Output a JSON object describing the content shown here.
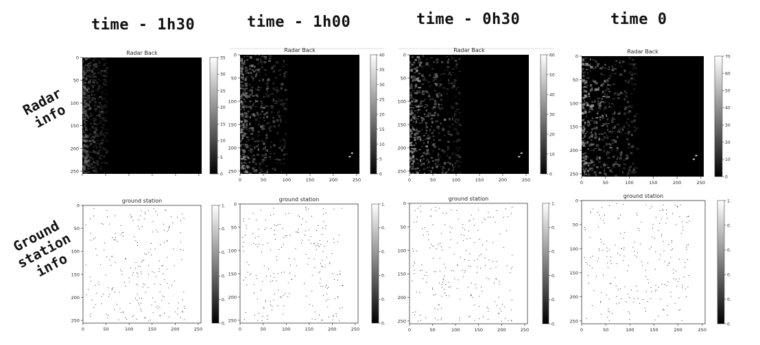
{
  "columns": [
    {
      "title": "time - 1h30",
      "radar_max": 35,
      "radar_ticks": [
        0,
        5,
        10,
        15,
        20,
        25,
        30,
        35
      ],
      "radar_cb_shown": [
        "0",
        "5",
        "10",
        "15",
        "20",
        "25",
        "30",
        "35"
      ]
    },
    {
      "title": "time - 1h00",
      "radar_max": 40,
      "radar_ticks": [
        0,
        5,
        10,
        15,
        20,
        25,
        30,
        35,
        40
      ],
      "radar_cb_shown": [
        "0",
        "5",
        "10",
        "15",
        "20",
        "25",
        "30",
        "35",
        "40"
      ]
    },
    {
      "title": "time - 0h30",
      "radar_max": 65,
      "radar_ticks": [
        0,
        10,
        20,
        30,
        40,
        50,
        60
      ],
      "radar_cb_shown": [
        "0",
        "10",
        "20",
        "30",
        "40",
        "50",
        "60"
      ]
    },
    {
      "title": "time 0",
      "radar_max": 72,
      "radar_ticks": [
        0,
        10,
        20,
        30,
        40,
        50,
        60,
        70
      ],
      "radar_cb_shown": [
        "0",
        "10",
        "20",
        "30",
        "40",
        "50",
        "60",
        "70"
      ]
    }
  ],
  "rows": {
    "radar_label": [
      "Radar",
      "info"
    ],
    "ground_label": [
      "Ground",
      "station",
      "info"
    ]
  },
  "chart_data": [
    {
      "type": "heatmap",
      "title": "Radar Back",
      "x_ticks": [
        "0",
        "50",
        "100",
        "150",
        "200",
        "250"
      ],
      "y_ticks": [
        "0",
        "50",
        "100",
        "150",
        "200",
        "250"
      ],
      "colormap": "gray"
    },
    {
      "type": "heatmap",
      "title": "ground station",
      "x_ticks": [
        "0",
        "50",
        "100",
        "150",
        "200",
        "250"
      ],
      "y_ticks": [
        "0",
        "50",
        "100",
        "150",
        "200",
        "250"
      ],
      "colormap": "gray",
      "colorbar_ticks": [
        "0.",
        "0.",
        "0.",
        "0.",
        "0.",
        "1."
      ]
    }
  ],
  "colors": {
    "background": "#ffffff",
    "dark": "#000000",
    "light": "#ffffff"
  }
}
